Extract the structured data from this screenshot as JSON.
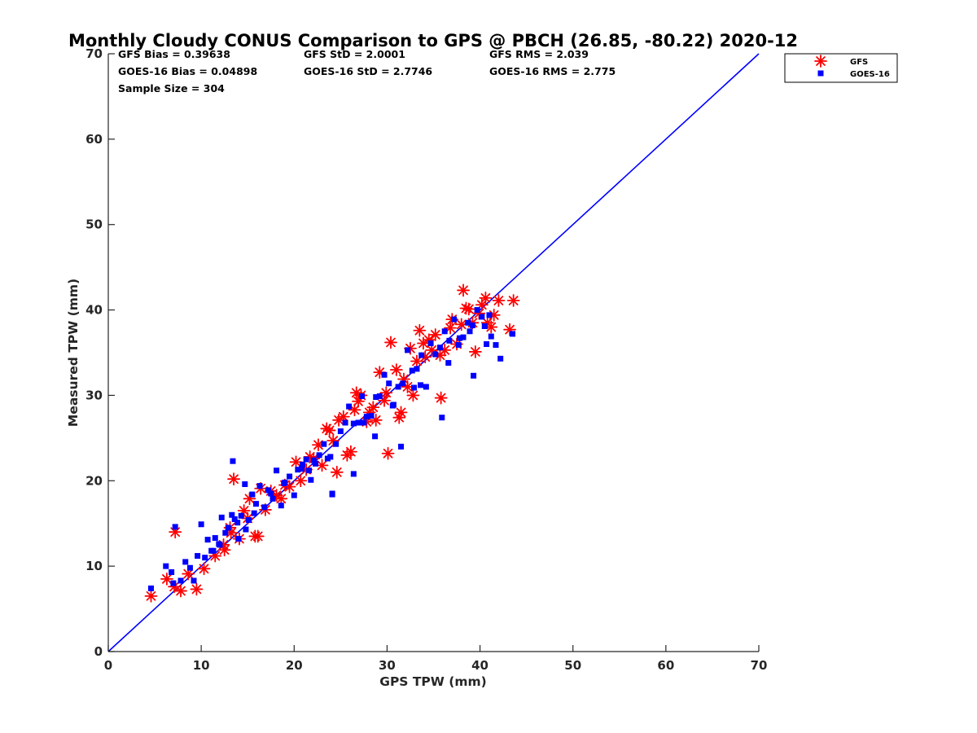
{
  "chart_data": {
    "type": "scatter",
    "title": "Monthly Cloudy CONUS Comparison to GPS @ PBCH (26.85, -80.22) 2020-12",
    "xlabel": "GPS TPW (mm)",
    "ylabel": "Measured TPW (mm)",
    "xlim": [
      0,
      70
    ],
    "ylim": [
      0,
      70
    ],
    "xticks": [
      "0",
      "10",
      "20",
      "30",
      "40",
      "50",
      "60",
      "70"
    ],
    "yticks": [
      "0",
      "10",
      "20",
      "30",
      "40",
      "50",
      "60",
      "70"
    ],
    "grid": false,
    "legend_position": "top-right outside",
    "stats": {
      "gfs_bias": "GFS Bias = 0.39638",
      "goes_bias": "GOES-16 Bias = 0.04898",
      "sample_size": "Sample Size = 304",
      "gfs_std": "GFS StD = 2.0001",
      "goes_std": "GOES-16 StD = 2.7746",
      "gfs_rms": "GFS RMS = 2.039",
      "goes_rms": "GOES-16 RMS = 2.775"
    },
    "reference_line": {
      "name": "1:1",
      "x": [
        0,
        70
      ],
      "y": [
        0,
        70
      ],
      "color": "#0000ff"
    },
    "series": [
      {
        "name": "GFS",
        "marker": "asterisk",
        "color": "#ff0000",
        "x": [
          4.6,
          6.3,
          7.1,
          7.8,
          9.5,
          10.3,
          11.5,
          12.4,
          13.2,
          13.5,
          14.6,
          15.2,
          15.8,
          16.4,
          17.5,
          18.6,
          19.5,
          20.2,
          21.3,
          22.1,
          23.0,
          23.8,
          24.6,
          25.3,
          26.1,
          26.5,
          27.2,
          27.8,
          28.5,
          29.2,
          30.1,
          30.4,
          31.0,
          31.5,
          32.2,
          32.8,
          33.5,
          34.1,
          34.5,
          35.2,
          35.8,
          36.2,
          36.8,
          37.5,
          38.2,
          38.8,
          39.5,
          40.2,
          40.8,
          41.5,
          42.0,
          43.2,
          43.6,
          40.6,
          41.2,
          7.2,
          16.1,
          29.7,
          26.7,
          8.6,
          12.5,
          13.1,
          14.1,
          15.0,
          16.9,
          18.1,
          19.0,
          20.7,
          21.7,
          22.6,
          23.5,
          24.2,
          25.7,
          26.9,
          28.1,
          28.8,
          29.9,
          31.3,
          32.5,
          33.2,
          34.8,
          35.7,
          37.0,
          38.5,
          39.2,
          39.9,
          24.8,
          31.8,
          33.9,
          38.0
        ],
        "y": [
          6.5,
          8.5,
          7.6,
          7.1,
          7.3,
          9.7,
          11.2,
          12.5,
          13.9,
          20.2,
          16.5,
          17.9,
          13.5,
          19.1,
          18.8,
          17.9,
          19.3,
          22.2,
          21.3,
          22.6,
          21.8,
          25.9,
          21.0,
          27.5,
          23.4,
          28.3,
          30.0,
          26.9,
          28.6,
          32.7,
          23.2,
          36.2,
          33.0,
          28.0,
          31.0,
          30.0,
          37.6,
          34.5,
          36.5,
          37.1,
          29.7,
          35.3,
          37.9,
          36.0,
          42.3,
          40.1,
          35.1,
          40.6,
          38.5,
          39.4,
          41.1,
          37.7,
          41.1,
          41.4,
          38.0,
          14.0,
          13.5,
          29.4,
          30.3,
          9.1,
          11.9,
          14.5,
          13.2,
          15.6,
          16.6,
          18.3,
          19.5,
          20.0,
          22.8,
          24.2,
          26.1,
          24.7,
          23.0,
          29.3,
          28.0,
          27.1,
          30.3,
          27.4,
          35.5,
          34.0,
          35.3,
          34.7,
          38.9,
          40.2,
          38.5,
          39.6,
          27.1,
          31.9,
          36.1,
          38.3
        ]
      },
      {
        "name": "GOES-16",
        "marker": "square",
        "color": "#0000ff",
        "x": [
          4.6,
          6.2,
          6.8,
          7.2,
          7.8,
          8.3,
          8.8,
          9.2,
          9.6,
          10.0,
          10.4,
          10.7,
          11.1,
          11.5,
          11.9,
          12.2,
          12.6,
          12.9,
          13.3,
          13.6,
          14.0,
          14.3,
          14.7,
          15.1,
          15.5,
          15.9,
          16.3,
          16.8,
          17.2,
          17.7,
          18.1,
          18.6,
          19.0,
          19.5,
          20.0,
          20.4,
          20.9,
          21.3,
          21.8,
          22.3,
          22.7,
          23.2,
          23.6,
          24.1,
          24.5,
          25.0,
          25.5,
          25.9,
          26.4,
          26.9,
          27.3,
          27.8,
          28.3,
          28.8,
          29.2,
          29.7,
          30.2,
          30.7,
          31.2,
          31.7,
          32.2,
          32.7,
          33.2,
          33.7,
          34.2,
          34.7,
          35.2,
          35.7,
          36.2,
          36.7,
          37.2,
          37.7,
          38.2,
          38.7,
          39.2,
          39.7,
          40.2,
          40.7,
          41.2,
          41.7,
          42.2,
          43.5,
          39.3,
          41.0,
          13.4,
          24.1,
          35.9,
          7.0,
          26.4,
          31.5,
          12.0,
          13.9,
          15.7,
          18.9,
          21.6,
          23.9,
          27.5,
          30.6,
          33.6,
          36.6,
          38.9,
          11.3,
          14.8,
          17.5,
          20.8,
          22.1,
          28.7,
          32.9,
          37.8,
          40.5
        ],
        "y": [
          7.4,
          10.0,
          9.3,
          14.6,
          8.3,
          10.5,
          9.8,
          8.3,
          11.2,
          14.9,
          11.0,
          13.1,
          11.8,
          13.3,
          12.6,
          15.7,
          13.9,
          14.5,
          16.0,
          15.5,
          13.2,
          15.9,
          19.6,
          15.4,
          18.4,
          17.3,
          19.4,
          16.9,
          18.9,
          17.9,
          21.2,
          17.1,
          19.8,
          20.5,
          18.3,
          21.3,
          21.9,
          22.5,
          20.1,
          22.0,
          23.0,
          24.3,
          22.6,
          18.4,
          24.3,
          25.8,
          26.8,
          28.7,
          26.7,
          26.8,
          29.9,
          27.5,
          27.6,
          29.8,
          29.9,
          32.4,
          31.4,
          28.9,
          31.0,
          31.4,
          35.3,
          32.9,
          33.1,
          34.7,
          31.0,
          36.1,
          34.8,
          35.6,
          37.5,
          36.4,
          38.9,
          35.9,
          36.8,
          38.5,
          38.2,
          40.0,
          39.2,
          36.0,
          36.9,
          35.9,
          34.3,
          37.2,
          32.3,
          39.4,
          22.3,
          18.5,
          27.4,
          8.0,
          20.8,
          24.0,
          12.5,
          15.1,
          16.2,
          19.7,
          21.2,
          22.8,
          26.8,
          28.8,
          31.2,
          33.8,
          37.5,
          11.8,
          14.3,
          18.5,
          21.4,
          22.4,
          25.2,
          30.9,
          36.7,
          38.1
        ]
      }
    ]
  }
}
